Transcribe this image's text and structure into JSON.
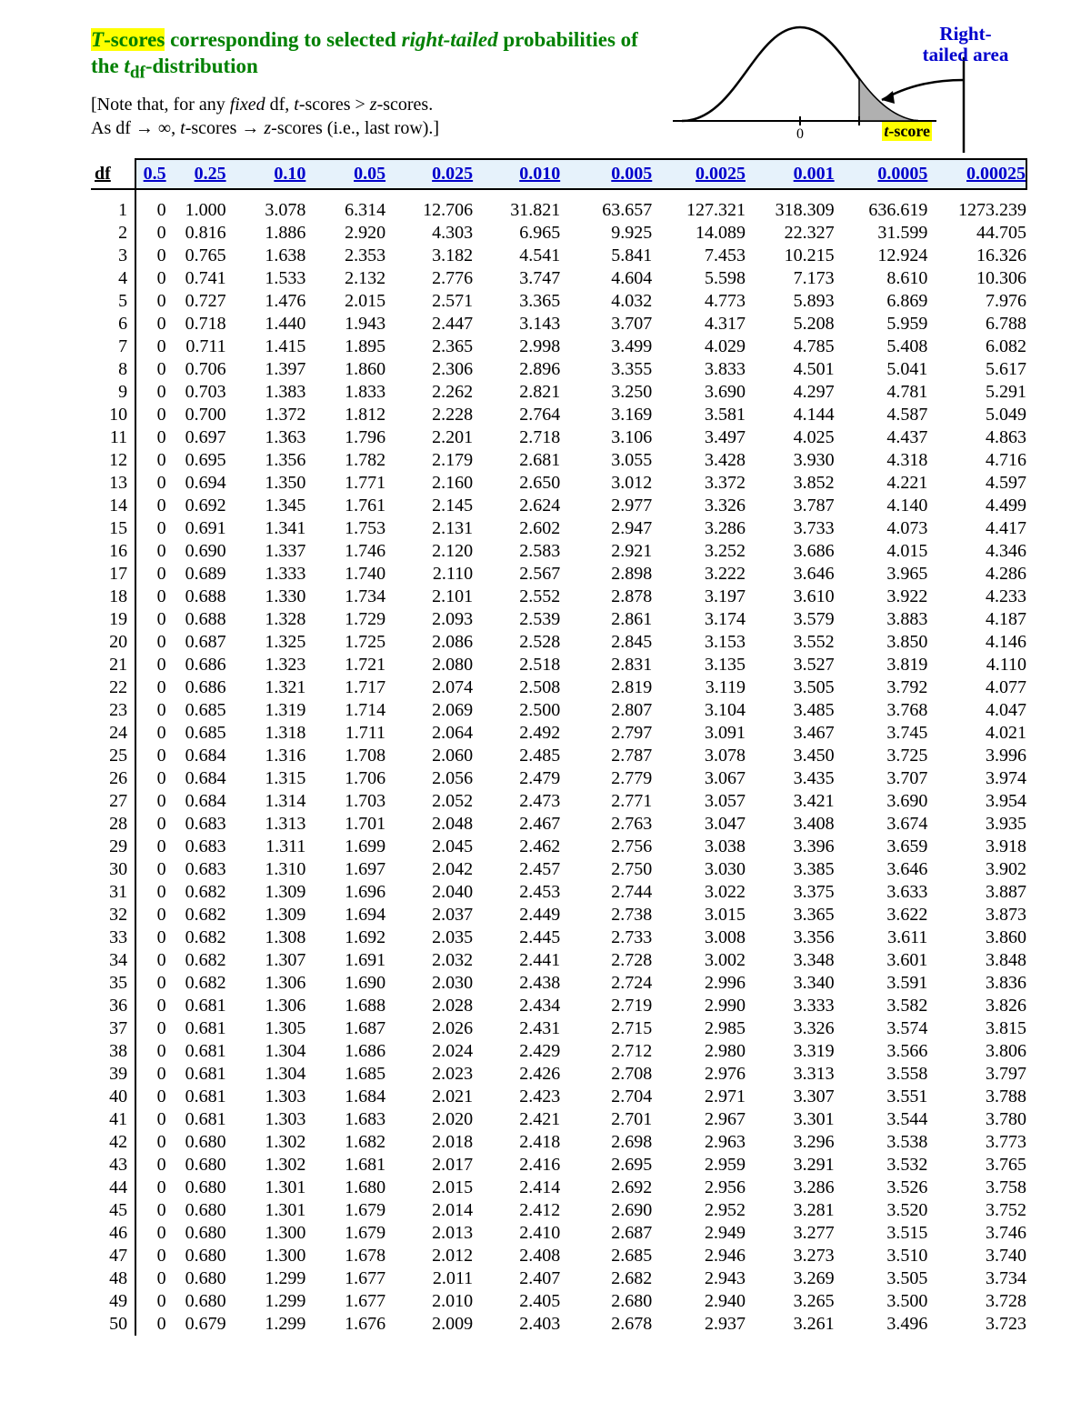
{
  "title": {
    "part1_hl_italic": "T",
    "part1_hl_rest": "-scores",
    "part2": " corresponding to selected ",
    "part3_italic": "right-tailed",
    "part4": " probabilities of the ",
    "part5_italic": "t",
    "part5_sub": "df",
    "part6": "-distribution"
  },
  "note": {
    "line1_a": "[Note that, for any ",
    "line1_fixed": "fixed",
    "line1_b": " df, ",
    "line1_t": "t",
    "line1_c": "-scores > ",
    "line1_z": "z",
    "line1_d": "-scores.",
    "line2_a": "As df → ∞, ",
    "line2_t": "t",
    "line2_b": "-scores → ",
    "line2_z": "z",
    "line2_c": "-scores (i.e., last row).]"
  },
  "diagram": {
    "right_tailed_1": "Right-",
    "right_tailed_2": "tailed area",
    "tscore_t": "t",
    "tscore_rest": "-score",
    "zero": "0"
  },
  "table": {
    "df_label": "df",
    "headers": [
      "0.5",
      "0.25",
      "0.10",
      "0.05",
      "0.025",
      "0.010",
      "0.005",
      "0.0025",
      "0.001",
      "0.0005",
      "0.00025"
    ],
    "col_classes": [
      "c-05a",
      "c-025a",
      "c-010",
      "c-005",
      "c-0025",
      "c-0010",
      "c-0005",
      "c-00025",
      "c-0001",
      "c-00005",
      "c-000025"
    ],
    "rows": [
      {
        "df": "1",
        "v": [
          "0",
          "1.000",
          "3.078",
          "6.314",
          "12.706",
          "31.821",
          "63.657",
          "127.321",
          "318.309",
          "636.619",
          "1273.239"
        ]
      },
      {
        "df": "2",
        "v": [
          "0",
          "0.816",
          "1.886",
          "2.920",
          "4.303",
          "6.965",
          "9.925",
          "14.089",
          "22.327",
          "31.599",
          "44.705"
        ]
      },
      {
        "df": "3",
        "v": [
          "0",
          "0.765",
          "1.638",
          "2.353",
          "3.182",
          "4.541",
          "5.841",
          "7.453",
          "10.215",
          "12.924",
          "16.326"
        ]
      },
      {
        "df": "4",
        "v": [
          "0",
          "0.741",
          "1.533",
          "2.132",
          "2.776",
          "3.747",
          "4.604",
          "5.598",
          "7.173",
          "8.610",
          "10.306"
        ]
      },
      {
        "df": "5",
        "v": [
          "0",
          "0.727",
          "1.476",
          "2.015",
          "2.571",
          "3.365",
          "4.032",
          "4.773",
          "5.893",
          "6.869",
          "7.976"
        ]
      },
      {
        "df": "6",
        "v": [
          "0",
          "0.718",
          "1.440",
          "1.943",
          "2.447",
          "3.143",
          "3.707",
          "4.317",
          "5.208",
          "5.959",
          "6.788"
        ]
      },
      {
        "df": "7",
        "v": [
          "0",
          "0.711",
          "1.415",
          "1.895",
          "2.365",
          "2.998",
          "3.499",
          "4.029",
          "4.785",
          "5.408",
          "6.082"
        ]
      },
      {
        "df": "8",
        "v": [
          "0",
          "0.706",
          "1.397",
          "1.860",
          "2.306",
          "2.896",
          "3.355",
          "3.833",
          "4.501",
          "5.041",
          "5.617"
        ]
      },
      {
        "df": "9",
        "v": [
          "0",
          "0.703",
          "1.383",
          "1.833",
          "2.262",
          "2.821",
          "3.250",
          "3.690",
          "4.297",
          "4.781",
          "5.291"
        ]
      },
      {
        "df": "10",
        "v": [
          "0",
          "0.700",
          "1.372",
          "1.812",
          "2.228",
          "2.764",
          "3.169",
          "3.581",
          "4.144",
          "4.587",
          "5.049"
        ]
      },
      {
        "df": "11",
        "v": [
          "0",
          "0.697",
          "1.363",
          "1.796",
          "2.201",
          "2.718",
          "3.106",
          "3.497",
          "4.025",
          "4.437",
          "4.863"
        ]
      },
      {
        "df": "12",
        "v": [
          "0",
          "0.695",
          "1.356",
          "1.782",
          "2.179",
          "2.681",
          "3.055",
          "3.428",
          "3.930",
          "4.318",
          "4.716"
        ]
      },
      {
        "df": "13",
        "v": [
          "0",
          "0.694",
          "1.350",
          "1.771",
          "2.160",
          "2.650",
          "3.012",
          "3.372",
          "3.852",
          "4.221",
          "4.597"
        ]
      },
      {
        "df": "14",
        "v": [
          "0",
          "0.692",
          "1.345",
          "1.761",
          "2.145",
          "2.624",
          "2.977",
          "3.326",
          "3.787",
          "4.140",
          "4.499"
        ]
      },
      {
        "df": "15",
        "v": [
          "0",
          "0.691",
          "1.341",
          "1.753",
          "2.131",
          "2.602",
          "2.947",
          "3.286",
          "3.733",
          "4.073",
          "4.417"
        ]
      },
      {
        "df": "16",
        "v": [
          "0",
          "0.690",
          "1.337",
          "1.746",
          "2.120",
          "2.583",
          "2.921",
          "3.252",
          "3.686",
          "4.015",
          "4.346"
        ]
      },
      {
        "df": "17",
        "v": [
          "0",
          "0.689",
          "1.333",
          "1.740",
          "2.110",
          "2.567",
          "2.898",
          "3.222",
          "3.646",
          "3.965",
          "4.286"
        ]
      },
      {
        "df": "18",
        "v": [
          "0",
          "0.688",
          "1.330",
          "1.734",
          "2.101",
          "2.552",
          "2.878",
          "3.197",
          "3.610",
          "3.922",
          "4.233"
        ]
      },
      {
        "df": "19",
        "v": [
          "0",
          "0.688",
          "1.328",
          "1.729",
          "2.093",
          "2.539",
          "2.861",
          "3.174",
          "3.579",
          "3.883",
          "4.187"
        ]
      },
      {
        "df": "20",
        "v": [
          "0",
          "0.687",
          "1.325",
          "1.725",
          "2.086",
          "2.528",
          "2.845",
          "3.153",
          "3.552",
          "3.850",
          "4.146"
        ]
      },
      {
        "df": "21",
        "v": [
          "0",
          "0.686",
          "1.323",
          "1.721",
          "2.080",
          "2.518",
          "2.831",
          "3.135",
          "3.527",
          "3.819",
          "4.110"
        ]
      },
      {
        "df": "22",
        "v": [
          "0",
          "0.686",
          "1.321",
          "1.717",
          "2.074",
          "2.508",
          "2.819",
          "3.119",
          "3.505",
          "3.792",
          "4.077"
        ]
      },
      {
        "df": "23",
        "v": [
          "0",
          "0.685",
          "1.319",
          "1.714",
          "2.069",
          "2.500",
          "2.807",
          "3.104",
          "3.485",
          "3.768",
          "4.047"
        ]
      },
      {
        "df": "24",
        "v": [
          "0",
          "0.685",
          "1.318",
          "1.711",
          "2.064",
          "2.492",
          "2.797",
          "3.091",
          "3.467",
          "3.745",
          "4.021"
        ]
      },
      {
        "df": "25",
        "v": [
          "0",
          "0.684",
          "1.316",
          "1.708",
          "2.060",
          "2.485",
          "2.787",
          "3.078",
          "3.450",
          "3.725",
          "3.996"
        ]
      },
      {
        "df": "26",
        "v": [
          "0",
          "0.684",
          "1.315",
          "1.706",
          "2.056",
          "2.479",
          "2.779",
          "3.067",
          "3.435",
          "3.707",
          "3.974"
        ]
      },
      {
        "df": "27",
        "v": [
          "0",
          "0.684",
          "1.314",
          "1.703",
          "2.052",
          "2.473",
          "2.771",
          "3.057",
          "3.421",
          "3.690",
          "3.954"
        ]
      },
      {
        "df": "28",
        "v": [
          "0",
          "0.683",
          "1.313",
          "1.701",
          "2.048",
          "2.467",
          "2.763",
          "3.047",
          "3.408",
          "3.674",
          "3.935"
        ]
      },
      {
        "df": "29",
        "v": [
          "0",
          "0.683",
          "1.311",
          "1.699",
          "2.045",
          "2.462",
          "2.756",
          "3.038",
          "3.396",
          "3.659",
          "3.918"
        ]
      },
      {
        "df": "30",
        "v": [
          "0",
          "0.683",
          "1.310",
          "1.697",
          "2.042",
          "2.457",
          "2.750",
          "3.030",
          "3.385",
          "3.646",
          "3.902"
        ]
      },
      {
        "df": "31",
        "v": [
          "0",
          "0.682",
          "1.309",
          "1.696",
          "2.040",
          "2.453",
          "2.744",
          "3.022",
          "3.375",
          "3.633",
          "3.887"
        ]
      },
      {
        "df": "32",
        "v": [
          "0",
          "0.682",
          "1.309",
          "1.694",
          "2.037",
          "2.449",
          "2.738",
          "3.015",
          "3.365",
          "3.622",
          "3.873"
        ]
      },
      {
        "df": "33",
        "v": [
          "0",
          "0.682",
          "1.308",
          "1.692",
          "2.035",
          "2.445",
          "2.733",
          "3.008",
          "3.356",
          "3.611",
          "3.860"
        ]
      },
      {
        "df": "34",
        "v": [
          "0",
          "0.682",
          "1.307",
          "1.691",
          "2.032",
          "2.441",
          "2.728",
          "3.002",
          "3.348",
          "3.601",
          "3.848"
        ]
      },
      {
        "df": "35",
        "v": [
          "0",
          "0.682",
          "1.306",
          "1.690",
          "2.030",
          "2.438",
          "2.724",
          "2.996",
          "3.340",
          "3.591",
          "3.836"
        ]
      },
      {
        "df": "36",
        "v": [
          "0",
          "0.681",
          "1.306",
          "1.688",
          "2.028",
          "2.434",
          "2.719",
          "2.990",
          "3.333",
          "3.582",
          "3.826"
        ]
      },
      {
        "df": "37",
        "v": [
          "0",
          "0.681",
          "1.305",
          "1.687",
          "2.026",
          "2.431",
          "2.715",
          "2.985",
          "3.326",
          "3.574",
          "3.815"
        ]
      },
      {
        "df": "38",
        "v": [
          "0",
          "0.681",
          "1.304",
          "1.686",
          "2.024",
          "2.429",
          "2.712",
          "2.980",
          "3.319",
          "3.566",
          "3.806"
        ]
      },
      {
        "df": "39",
        "v": [
          "0",
          "0.681",
          "1.304",
          "1.685",
          "2.023",
          "2.426",
          "2.708",
          "2.976",
          "3.313",
          "3.558",
          "3.797"
        ]
      },
      {
        "df": "40",
        "v": [
          "0",
          "0.681",
          "1.303",
          "1.684",
          "2.021",
          "2.423",
          "2.704",
          "2.971",
          "3.307",
          "3.551",
          "3.788"
        ]
      },
      {
        "df": "41",
        "v": [
          "0",
          "0.681",
          "1.303",
          "1.683",
          "2.020",
          "2.421",
          "2.701",
          "2.967",
          "3.301",
          "3.544",
          "3.780"
        ]
      },
      {
        "df": "42",
        "v": [
          "0",
          "0.680",
          "1.302",
          "1.682",
          "2.018",
          "2.418",
          "2.698",
          "2.963",
          "3.296",
          "3.538",
          "3.773"
        ]
      },
      {
        "df": "43",
        "v": [
          "0",
          "0.680",
          "1.302",
          "1.681",
          "2.017",
          "2.416",
          "2.695",
          "2.959",
          "3.291",
          "3.532",
          "3.765"
        ]
      },
      {
        "df": "44",
        "v": [
          "0",
          "0.680",
          "1.301",
          "1.680",
          "2.015",
          "2.414",
          "2.692",
          "2.956",
          "3.286",
          "3.526",
          "3.758"
        ]
      },
      {
        "df": "45",
        "v": [
          "0",
          "0.680",
          "1.301",
          "1.679",
          "2.014",
          "2.412",
          "2.690",
          "2.952",
          "3.281",
          "3.520",
          "3.752"
        ]
      },
      {
        "df": "46",
        "v": [
          "0",
          "0.680",
          "1.300",
          "1.679",
          "2.013",
          "2.410",
          "2.687",
          "2.949",
          "3.277",
          "3.515",
          "3.746"
        ]
      },
      {
        "df": "47",
        "v": [
          "0",
          "0.680",
          "1.300",
          "1.678",
          "2.012",
          "2.408",
          "2.685",
          "2.946",
          "3.273",
          "3.510",
          "3.740"
        ]
      },
      {
        "df": "48",
        "v": [
          "0",
          "0.680",
          "1.299",
          "1.677",
          "2.011",
          "2.407",
          "2.682",
          "2.943",
          "3.269",
          "3.505",
          "3.734"
        ]
      },
      {
        "df": "49",
        "v": [
          "0",
          "0.680",
          "1.299",
          "1.677",
          "2.010",
          "2.405",
          "2.680",
          "2.940",
          "3.265",
          "3.500",
          "3.728"
        ]
      },
      {
        "df": "50",
        "v": [
          "0",
          "0.679",
          "1.299",
          "1.676",
          "2.009",
          "2.403",
          "2.678",
          "2.937",
          "3.261",
          "3.496",
          "3.723"
        ]
      }
    ]
  }
}
